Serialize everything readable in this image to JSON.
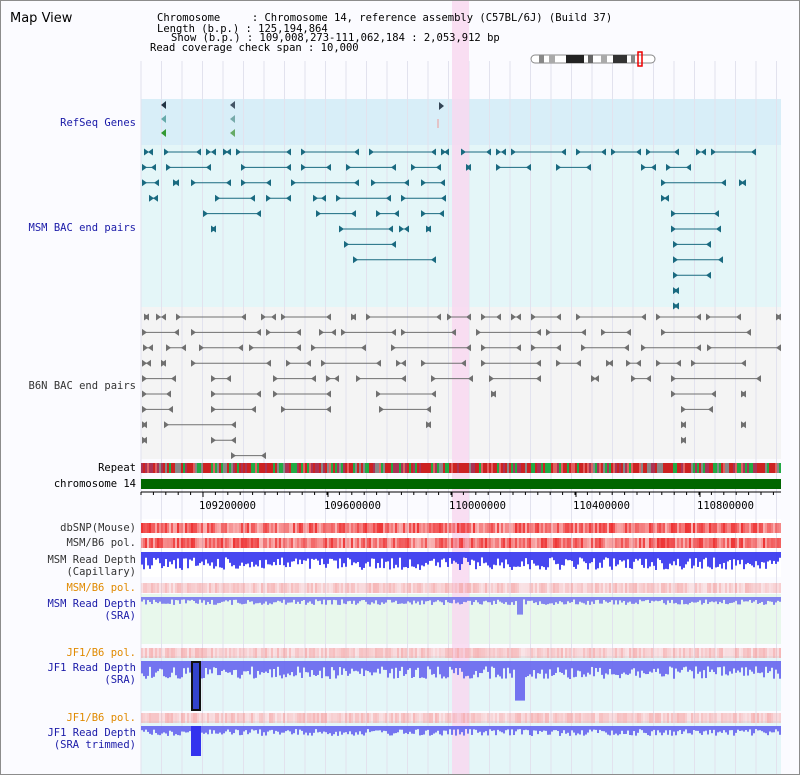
{
  "page": {
    "title": "Map View"
  },
  "info": {
    "line1": "Chromosome     : Chromosome 14, reference assembly (C57BL/6J) (Build 37)",
    "line2": "Length (b.p.) : 125,194,864",
    "line3": "Show (b.p.) : 109,008,273-111,062,184 : 2,053,912 bp",
    "line4": "Read coverage check span : 10,000"
  },
  "tracks": {
    "refseq": "RefSeq Genes",
    "msm_bac": "MSM BAC end pairs",
    "b6n_bac": "B6N BAC end pairs",
    "repeat": "Repeat",
    "chromosome": "chromosome 14",
    "dbsnp": "dbSNP(Mouse)",
    "msm_b6_pol_1": "MSM/B6 pol.",
    "msm_read_depth_cap_1": "MSM Read Depth",
    "msm_read_depth_cap_2": "(Capillary)",
    "msm_b6_pol_2": "MSM/B6 pol.",
    "msm_read_depth_sra_1": "MSM Read Depth",
    "msm_read_depth_sra_2": "(SRA)",
    "jf1_b6_pol_1": "JF1/B6 pol.",
    "jf1_read_depth_sra_1": "JF1 Read Depth",
    "jf1_read_depth_sra_2": "(SRA)",
    "jf1_b6_pol_2": "JF1/B6 pol.",
    "jf1_read_depth_trim_1": "JF1 Read Depth",
    "jf1_read_depth_trim_2": "(SRA trimmed)"
  },
  "axis": {
    "ticks": [
      "109200000",
      "109600000",
      "110000000",
      "110400000",
      "110800000"
    ]
  },
  "colors": {
    "refseq_bg": "#d8eef8",
    "msm_feature": "#1a6a80",
    "b6n_feature": "#707070",
    "highlight": "#f8d8f0",
    "chromosome": "#006600",
    "snp_red": "#ee3333",
    "depth_blue": "#3333ee",
    "pol_pink": "#f4a0a0"
  }
}
